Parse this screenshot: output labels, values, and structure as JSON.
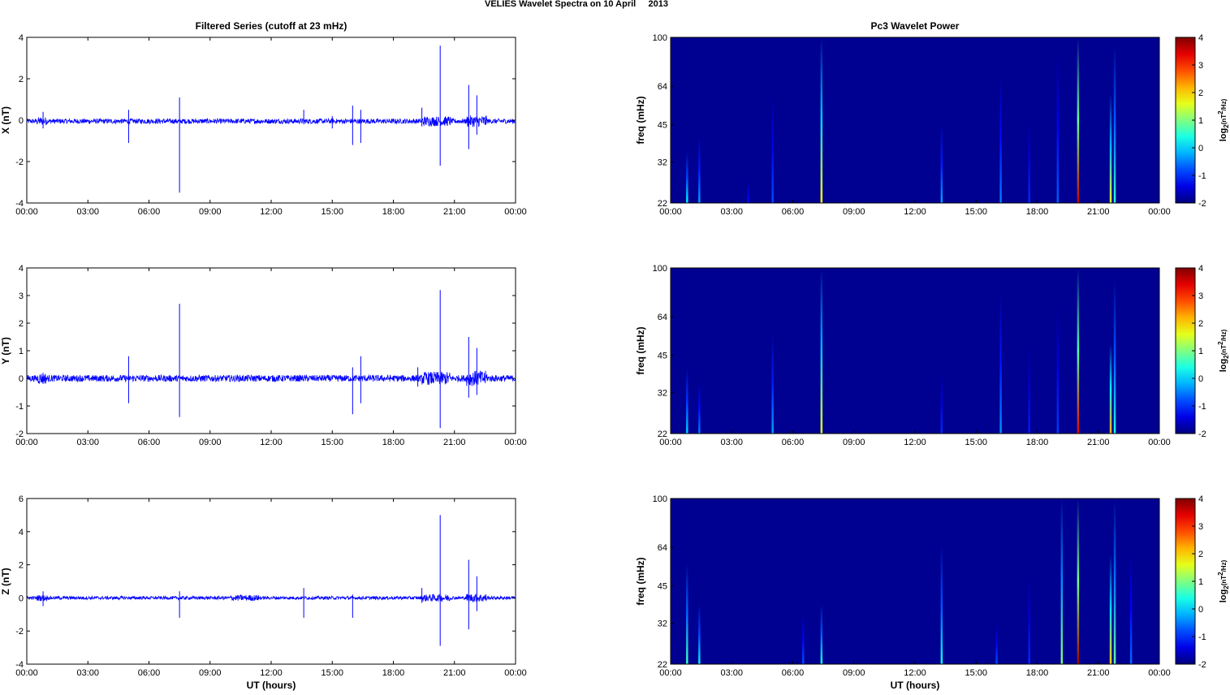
{
  "figure": {
    "title": "VELIES Wavelet Spectra on 10 April     2013",
    "left_title": "Filtered Series (cutoff at 23 mHz)",
    "right_title": "Pc3 Wavelet Power",
    "xlabel": "UT (hours)"
  },
  "colors": {
    "line": "#0000ff",
    "background_power": "#00008f"
  },
  "chart_data": [
    {
      "type": "line",
      "ylabel": "X (nT)",
      "x_ticks": [
        "00:00",
        "03:00",
        "06:00",
        "09:00",
        "12:00",
        "15:00",
        "18:00",
        "21:00",
        "00:00"
      ],
      "xlim": [
        0,
        24
      ],
      "ylim": [
        -4,
        4
      ],
      "y_ticks": [
        "4",
        "2",
        "0",
        "-2",
        "-4"
      ],
      "baseline": -0.05,
      "noise": 0.12,
      "bursts": [
        [
          19.4,
          20.8,
          0.12
        ],
        [
          21.6,
          22.6,
          0.16
        ],
        [
          0.5,
          1.0,
          0.08
        ]
      ],
      "spikes": [
        [
          0.8,
          0.4,
          -0.4
        ],
        [
          5.0,
          0.5,
          -1.1
        ],
        [
          7.5,
          1.1,
          -3.5
        ],
        [
          13.6,
          0.5,
          -0.2
        ],
        [
          15.0,
          0.2,
          -0.4
        ],
        [
          16.0,
          0.7,
          -1.2
        ],
        [
          16.4,
          0.5,
          -1.1
        ],
        [
          19.4,
          0.6,
          -0.3
        ],
        [
          20.3,
          3.6,
          -2.2
        ],
        [
          21.7,
          1.7,
          -1.4
        ],
        [
          22.1,
          1.2,
          -0.7
        ]
      ]
    },
    {
      "type": "line",
      "ylabel": "Y (nT)",
      "x_ticks": [
        "00:00",
        "03:00",
        "06:00",
        "09:00",
        "12:00",
        "15:00",
        "18:00",
        "21:00",
        "00:00"
      ],
      "xlim": [
        0,
        24
      ],
      "ylim": [
        -2,
        4
      ],
      "y_ticks": [
        "4",
        "3",
        "2",
        "1",
        "0",
        "-1",
        "-2"
      ],
      "baseline": 0.0,
      "noise": 0.12,
      "bursts": [
        [
          19.4,
          20.8,
          0.12
        ],
        [
          21.6,
          22.6,
          0.16
        ],
        [
          0.5,
          1.0,
          0.08
        ]
      ],
      "spikes": [
        [
          0.8,
          0.2,
          -0.2
        ],
        [
          5.0,
          0.8,
          -0.9
        ],
        [
          7.5,
          2.7,
          -1.4
        ],
        [
          16.0,
          0.4,
          -1.3
        ],
        [
          16.4,
          0.8,
          -0.9
        ],
        [
          19.2,
          0.4,
          -0.3
        ],
        [
          20.3,
          3.2,
          -1.8
        ],
        [
          21.7,
          1.5,
          -0.7
        ],
        [
          22.1,
          1.1,
          -0.6
        ]
      ]
    },
    {
      "type": "line",
      "ylabel": "Z (nT)",
      "x_ticks": [
        "00:00",
        "03:00",
        "06:00",
        "09:00",
        "12:00",
        "15:00",
        "18:00",
        "21:00",
        "00:00"
      ],
      "xlim": [
        0,
        24
      ],
      "ylim": [
        -4,
        6
      ],
      "y_ticks": [
        "6",
        "4",
        "2",
        "0",
        "-2",
        "-4"
      ],
      "baseline": 0.0,
      "noise": 0.1,
      "bursts": [
        [
          19.4,
          20.8,
          0.12
        ],
        [
          21.6,
          22.6,
          0.16
        ],
        [
          0.5,
          1.0,
          0.08
        ],
        [
          10.0,
          11.5,
          0.08
        ]
      ],
      "spikes": [
        [
          0.8,
          0.4,
          -0.5
        ],
        [
          7.5,
          0.4,
          -1.2
        ],
        [
          13.6,
          0.6,
          -1.2
        ],
        [
          16.0,
          0.2,
          -1.2
        ],
        [
          19.4,
          0.6,
          -0.3
        ],
        [
          20.3,
          5.0,
          -2.9
        ],
        [
          21.7,
          2.3,
          -1.9
        ],
        [
          22.1,
          1.3,
          -0.8
        ]
      ]
    },
    {
      "type": "heatmap",
      "ylabel": "freq (mHz)",
      "colorbar_label": "log2(nT2/Hz)",
      "x_ticks": [
        "00:00",
        "03:00",
        "06:00",
        "09:00",
        "12:00",
        "15:00",
        "18:00",
        "21:00",
        "00:00"
      ],
      "y_ticks": [
        "100",
        "64",
        "45",
        "32",
        "22"
      ],
      "clim": [
        -2,
        4
      ],
      "colorbar_ticks": [
        "4",
        "3",
        "2",
        "1",
        "0",
        "-1",
        "-2"
      ],
      "streaks": [
        [
          0.8,
          35,
          0.2
        ],
        [
          1.4,
          40,
          -0.3
        ],
        [
          3.8,
          27,
          -1.2
        ],
        [
          5.0,
          60,
          -0.8
        ],
        [
          7.4,
          100,
          1.8
        ],
        [
          13.3,
          45,
          -0.3
        ],
        [
          16.2,
          70,
          -0.5
        ],
        [
          17.6,
          48,
          -1.0
        ],
        [
          19.0,
          85,
          -0.7
        ],
        [
          20.0,
          100,
          3.6
        ],
        [
          21.6,
          60,
          1.6
        ],
        [
          21.8,
          95,
          0.5
        ]
      ]
    },
    {
      "type": "heatmap",
      "ylabel": "freq (mHz)",
      "colorbar_label": "log2(nT2/Hz)",
      "x_ticks": [
        "00:00",
        "03:00",
        "06:00",
        "09:00",
        "12:00",
        "15:00",
        "18:00",
        "21:00",
        "00:00"
      ],
      "y_ticks": [
        "100",
        "64",
        "45",
        "32",
        "22"
      ],
      "clim": [
        -2,
        4
      ],
      "colorbar_ticks": [
        "4",
        "3",
        "2",
        "1",
        "0",
        "-1",
        "-2"
      ],
      "streaks": [
        [
          0.8,
          40,
          0.0
        ],
        [
          1.4,
          35,
          -0.5
        ],
        [
          5.0,
          55,
          -0.3
        ],
        [
          7.4,
          100,
          1.6
        ],
        [
          13.3,
          38,
          -1.0
        ],
        [
          16.2,
          80,
          -0.4
        ],
        [
          17.6,
          50,
          -1.1
        ],
        [
          19.0,
          70,
          -0.9
        ],
        [
          20.0,
          100,
          3.4
        ],
        [
          21.6,
          50,
          2.2
        ],
        [
          21.8,
          90,
          0.4
        ]
      ]
    },
    {
      "type": "heatmap",
      "ylabel": "freq (mHz)",
      "colorbar_label": "log2(nT2/Hz)",
      "x_ticks": [
        "00:00",
        "03:00",
        "06:00",
        "09:00",
        "12:00",
        "15:00",
        "18:00",
        "21:00",
        "00:00"
      ],
      "y_ticks": [
        "100",
        "64",
        "45",
        "32",
        "22"
      ],
      "clim": [
        -2,
        4
      ],
      "colorbar_ticks": [
        "4",
        "3",
        "2",
        "1",
        "0",
        "-1",
        "-2"
      ],
      "streaks": [
        [
          0.8,
          55,
          0.6
        ],
        [
          1.4,
          38,
          0.2
        ],
        [
          6.5,
          35,
          -0.8
        ],
        [
          7.4,
          38,
          0.4
        ],
        [
          13.3,
          65,
          0.3
        ],
        [
          16.0,
          32,
          -0.8
        ],
        [
          17.6,
          50,
          -1.0
        ],
        [
          19.2,
          100,
          1.0
        ],
        [
          20.0,
          100,
          3.8
        ],
        [
          21.6,
          60,
          2.0
        ],
        [
          21.8,
          100,
          0.8
        ],
        [
          22.6,
          60,
          -0.6
        ]
      ]
    }
  ]
}
